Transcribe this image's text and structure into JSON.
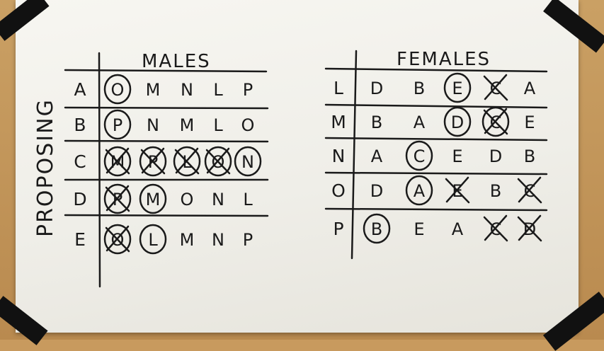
{
  "side_label": "PROPOSING",
  "males": {
    "title": "MALES",
    "rows": [
      {
        "name": "A",
        "prefs": [
          {
            "l": "O",
            "mark": "circle"
          },
          {
            "l": "M",
            "mark": ""
          },
          {
            "l": "N",
            "mark": ""
          },
          {
            "l": "L",
            "mark": ""
          },
          {
            "l": "P",
            "mark": ""
          }
        ]
      },
      {
        "name": "B",
        "prefs": [
          {
            "l": "P",
            "mark": "circle"
          },
          {
            "l": "N",
            "mark": ""
          },
          {
            "l": "M",
            "mark": ""
          },
          {
            "l": "L",
            "mark": ""
          },
          {
            "l": "O",
            "mark": ""
          }
        ]
      },
      {
        "name": "C",
        "prefs": [
          {
            "l": "M",
            "mark": "circle-x"
          },
          {
            "l": "P",
            "mark": "circle-x"
          },
          {
            "l": "L",
            "mark": "circle-x"
          },
          {
            "l": "O",
            "mark": "circle-x"
          },
          {
            "l": "N",
            "mark": "circle"
          }
        ]
      },
      {
        "name": "D",
        "prefs": [
          {
            "l": "P",
            "mark": "circle-x"
          },
          {
            "l": "M",
            "mark": "circle"
          },
          {
            "l": "O",
            "mark": ""
          },
          {
            "l": "N",
            "mark": ""
          },
          {
            "l": "L",
            "mark": ""
          }
        ]
      },
      {
        "name": "E",
        "prefs": [
          {
            "l": "O",
            "mark": "circle-x"
          },
          {
            "l": "L",
            "mark": "circle"
          },
          {
            "l": "M",
            "mark": ""
          },
          {
            "l": "N",
            "mark": ""
          },
          {
            "l": "P",
            "mark": ""
          }
        ]
      }
    ]
  },
  "females": {
    "title": "FEMALES",
    "rows": [
      {
        "name": "L",
        "prefs": [
          {
            "l": "D",
            "mark": ""
          },
          {
            "l": "B",
            "mark": ""
          },
          {
            "l": "E",
            "mark": "circle"
          },
          {
            "l": "C",
            "mark": "x"
          },
          {
            "l": "A",
            "mark": ""
          }
        ]
      },
      {
        "name": "M",
        "prefs": [
          {
            "l": "B",
            "mark": ""
          },
          {
            "l": "A",
            "mark": ""
          },
          {
            "l": "D",
            "mark": "circle"
          },
          {
            "l": "C",
            "mark": "circle-x"
          },
          {
            "l": "E",
            "mark": ""
          }
        ]
      },
      {
        "name": "N",
        "prefs": [
          {
            "l": "A",
            "mark": ""
          },
          {
            "l": "C",
            "mark": "circle"
          },
          {
            "l": "E",
            "mark": ""
          },
          {
            "l": "D",
            "mark": ""
          },
          {
            "l": "B",
            "mark": ""
          }
        ]
      },
      {
        "name": "O",
        "prefs": [
          {
            "l": "D",
            "mark": ""
          },
          {
            "l": "A",
            "mark": "circle"
          },
          {
            "l": "E",
            "mark": "x"
          },
          {
            "l": "B",
            "mark": ""
          },
          {
            "l": "C",
            "mark": "x"
          }
        ]
      },
      {
        "name": "P",
        "prefs": [
          {
            "l": "B",
            "mark": "circle"
          },
          {
            "l": "E",
            "mark": ""
          },
          {
            "l": "A",
            "mark": ""
          },
          {
            "l": "C",
            "mark": "x"
          },
          {
            "l": "D",
            "mark": "x"
          }
        ]
      }
    ]
  }
}
